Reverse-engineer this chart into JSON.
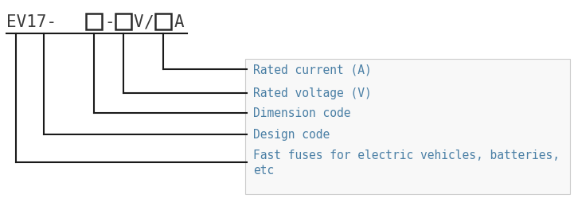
{
  "bg_color": "#ffffff",
  "text_color_header": "#3a3a3a",
  "text_color_labels": "#4a7fa5",
  "line_color": "#1a1a1a",
  "labels": [
    "Rated current (A)",
    "Rated voltage (V)",
    "Dimension code",
    "Design code",
    "Fast fuses for electric vehicles, batteries,\netc"
  ],
  "header_fontsize": 15,
  "label_fontsize": 10.5,
  "box_outline_color": "#2a2a2a",
  "annotation_box_color": "#f8f8f8",
  "annotation_box_edge": "#cccccc",
  "fig_width": 7.21,
  "fig_height": 2.55,
  "dpi": 100
}
